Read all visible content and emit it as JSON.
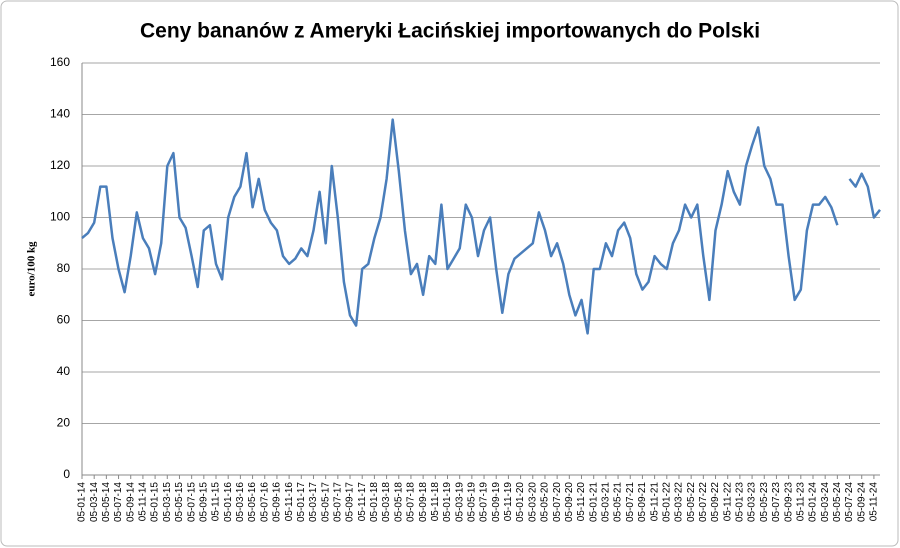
{
  "chart_data": {
    "type": "line",
    "title": "Ceny bananów z Ameryki Łacińskiej importowanych do Polski",
    "y_label": "euro/100 kg",
    "categories": [
      "05-01-14",
      null,
      "05-03-14",
      null,
      "05-05-14",
      null,
      "05-07-14",
      null,
      "05-09-14",
      null,
      "05-11-14",
      null,
      "05-01-15",
      null,
      "05-03-15",
      null,
      "05-05-15",
      null,
      "05-07-15",
      null,
      "05-09-15",
      null,
      "05-11-15",
      null,
      "05-01-16",
      null,
      "05-03-16",
      null,
      "05-05-16",
      null,
      "05-07-16",
      null,
      "05-09-16",
      null,
      "05-11-16",
      null,
      "05-01-17",
      null,
      "05-03-17",
      null,
      "05-05-17",
      null,
      "05-07-17",
      null,
      "05-09-17",
      null,
      "05-11-17",
      null,
      "05-01-18",
      null,
      "05-03-18",
      null,
      "05-05-18",
      null,
      "05-07-18",
      null,
      "05-09-18",
      null,
      "05-11-18",
      null,
      "05-01-19",
      null,
      "05-03-19",
      null,
      "05-05-19",
      null,
      "05-07-19",
      null,
      "05-09-19",
      null,
      "05-11-19",
      null,
      "05-01-20",
      null,
      "05-03-20",
      null,
      "05-05-20",
      null,
      "05-07-20",
      null,
      "05-09-20",
      null,
      "05-11-20",
      null,
      "05-01-21",
      null,
      "05-03-21",
      null,
      "05-05-21",
      null,
      "05-07-21",
      null,
      "05-09-21",
      null,
      "05-11-21",
      null,
      "05-01-22",
      null,
      "05-03-22",
      null,
      "05-05-22",
      null,
      "05-07-22",
      null,
      "05-09-22",
      null,
      "05-11-22",
      null,
      "05-01-23",
      null,
      "05-03-23",
      null,
      "05-05-23",
      null,
      "05-07-23",
      null,
      "05-09-23",
      null,
      "05-11-23",
      null,
      "05-01-24",
      null,
      "05-03-24",
      null,
      "05-05-24",
      null,
      "05-07-24",
      null,
      "05-09-24",
      null,
      "05-11-24",
      null
    ],
    "series": [
      {
        "color": "#4a7ebb",
        "values": [
          92,
          94,
          98,
          112,
          112,
          92,
          80,
          71,
          85,
          102,
          92,
          88,
          78,
          90,
          120,
          125,
          100,
          96,
          85,
          73,
          95,
          97,
          82,
          76,
          100,
          108,
          112,
          125,
          104,
          115,
          103,
          98,
          95,
          85,
          82,
          84,
          88,
          85,
          95,
          110,
          90,
          120,
          100,
          75,
          62,
          58,
          80,
          82,
          92,
          100,
          115,
          138,
          118,
          95,
          78,
          82,
          70,
          85,
          82,
          105,
          80,
          84,
          88,
          105,
          100,
          85,
          95,
          100,
          80,
          63,
          78,
          84,
          86,
          88,
          90,
          102,
          95,
          85,
          90,
          82,
          70,
          62,
          68,
          55,
          80,
          80,
          90,
          85,
          95,
          98,
          92,
          78,
          72,
          75,
          85,
          82,
          80,
          90,
          95,
          105,
          100,
          105,
          85,
          68,
          95,
          105,
          118,
          110,
          105,
          120,
          128,
          135,
          120,
          115,
          105,
          105,
          85,
          68,
          72,
          95,
          105,
          105,
          108,
          104,
          97,
          null,
          115,
          112,
          117,
          112,
          100,
          103
        ]
      }
    ],
    "ylim": [
      0,
      160
    ],
    "yticks": [
      0,
      20,
      40,
      60,
      80,
      100,
      120,
      140,
      160
    ],
    "grid": true
  }
}
